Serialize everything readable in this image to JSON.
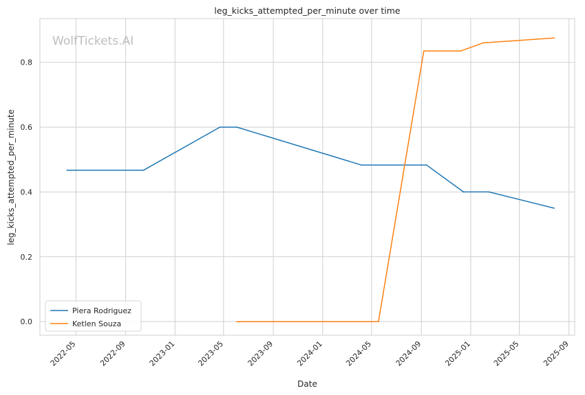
{
  "chart_data": {
    "type": "line",
    "title": "leg_kicks_attempted_per_minute over time",
    "xlabel": "Date",
    "ylabel": "leg_kicks_attempted_per_minute",
    "watermark": "WolfTickets.AI",
    "xlim": [
      "2022-02-01",
      "2025-09-15"
    ],
    "ylim": [
      -0.042,
      0.935
    ],
    "x_ticks": [
      "2022-05-01",
      "2022-09-01",
      "2023-01-01",
      "2023-05-01",
      "2023-09-01",
      "2024-01-01",
      "2024-05-01",
      "2024-09-01",
      "2025-01-01",
      "2025-05-01",
      "2025-09-01"
    ],
    "x_tick_labels": [
      "2022-05",
      "2022-09",
      "2023-01",
      "2023-05",
      "2023-09",
      "2024-01",
      "2024-05",
      "2024-09",
      "2025-01",
      "2025-05",
      "2025-09"
    ],
    "y_ticks": [
      0.0,
      0.2,
      0.4,
      0.6,
      0.8
    ],
    "y_tick_labels": [
      "0.0",
      "0.2",
      "0.4",
      "0.6",
      "0.8"
    ],
    "grid": true,
    "legend_position": "lower-left",
    "series": [
      {
        "name": "Piera Rodriguez",
        "color": "#1f77b4",
        "points": [
          {
            "x": "2022-04-09",
            "y": 0.467
          },
          {
            "x": "2022-10-15",
            "y": 0.467
          },
          {
            "x": "2023-04-22",
            "y": 0.6
          },
          {
            "x": "2023-06-03",
            "y": 0.6
          },
          {
            "x": "2024-04-06",
            "y": 0.483
          },
          {
            "x": "2024-09-14",
            "y": 0.483
          },
          {
            "x": "2024-12-14",
            "y": 0.4
          },
          {
            "x": "2025-02-15",
            "y": 0.4
          },
          {
            "x": "2025-07-26",
            "y": 0.35
          }
        ]
      },
      {
        "name": "Ketlen Souza",
        "color": "#ff7f0e",
        "points": [
          {
            "x": "2023-06-03",
            "y": 0.0
          },
          {
            "x": "2024-05-18",
            "y": 0.0
          },
          {
            "x": "2024-09-07",
            "y": 0.835
          },
          {
            "x": "2024-12-07",
            "y": 0.835
          },
          {
            "x": "2025-02-01",
            "y": 0.86
          },
          {
            "x": "2025-07-26",
            "y": 0.875
          }
        ]
      }
    ]
  }
}
